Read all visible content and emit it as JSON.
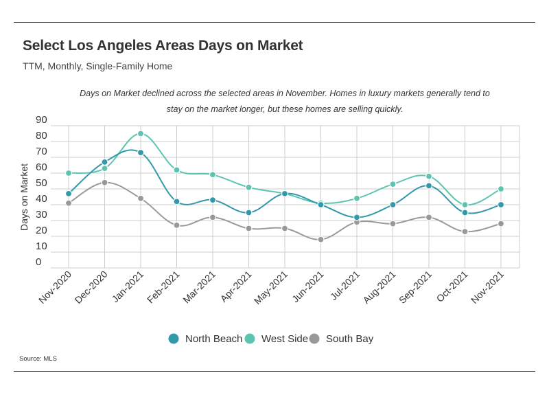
{
  "header": {
    "title": "Select Los Angeles Areas Days on Market",
    "subtitle": "TTM, Monthly, Single-Family Home",
    "annotation": "Days on Market declined across the selected areas in November. Homes in luxury markets generally tend to stay on the market longer, but these homes are selling quickly."
  },
  "footer": {
    "source": "Source:  MLS"
  },
  "chart_data": {
    "type": "line",
    "title": "Select Los Angeles Areas Days on Market",
    "subtitle": "TTM, Monthly, Single-Family Home",
    "xlabel": "",
    "ylabel": "Days on Market",
    "ylim": [
      0,
      90
    ],
    "yticks": [
      0,
      10,
      20,
      30,
      40,
      50,
      60,
      70,
      80,
      90
    ],
    "grid": true,
    "legend": "bottom",
    "smooth": true,
    "categories": [
      "Nov-2020",
      "Dec-2020",
      "Jan-2021",
      "Feb-2021",
      "Mar-2021",
      "Apr-2021",
      "May-2021",
      "Jun-2021",
      "Jul-2021",
      "Aug-2021",
      "Sep-2021",
      "Oct-2021",
      "Nov-2021"
    ],
    "series": [
      {
        "name": "North Beach",
        "color": "#3399aa",
        "values": [
          47,
          67,
          73,
          42,
          43,
          35,
          47,
          40,
          32,
          40,
          52,
          35,
          40
        ]
      },
      {
        "name": "West Side",
        "color": "#5cc4b0",
        "values": [
          60,
          63,
          85,
          62,
          59,
          51,
          47,
          41,
          44,
          53,
          58,
          40,
          50
        ]
      },
      {
        "name": "South Bay",
        "color": "#999999",
        "values": [
          41,
          54,
          44,
          27,
          32,
          25,
          25,
          18,
          29,
          28,
          32,
          23,
          28
        ]
      }
    ]
  }
}
